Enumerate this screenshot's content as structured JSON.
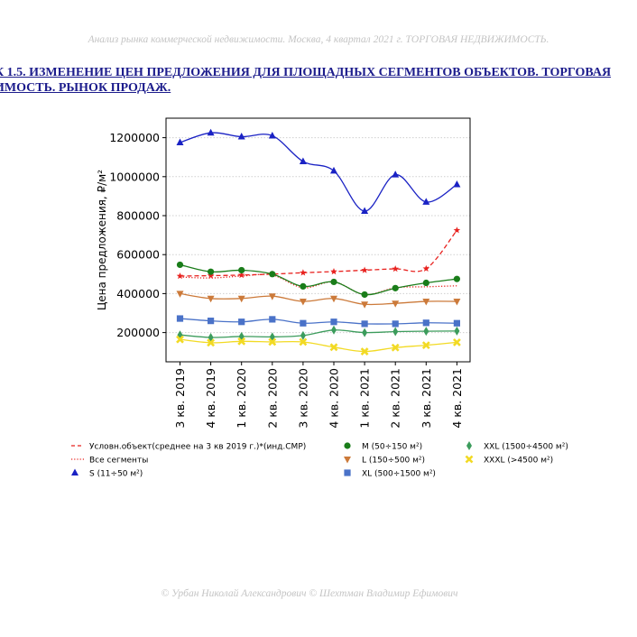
{
  "header": {
    "text": "Анализ рынка коммерческой недвижимости.   Москва,  4 квартал 2021 г.   ТОРГОВАЯ НЕДВИЖИМОСТЬ."
  },
  "title": {
    "line1": "К 1.5. ИЗМЕНЕНИЕ ЦЕН ПРЕДЛОЖЕНИЯ ДЛЯ ПЛОЩАДНЫХ СЕГМЕНТОВ ОБЪЕКТОВ. ТОРГОВАЯ",
    "line2": "ИМОСТЬ. РЫНОК ПРОДАЖ."
  },
  "footer": {
    "text": "© Урбан Николай Александрович   © Шехтман Владимир Ефимович"
  },
  "chart_data": {
    "type": "line",
    "title": "",
    "xlabel": "",
    "ylabel": "Цена предложения, ₽/м²",
    "categories": [
      "3 кв. 2019",
      "4 кв. 2019",
      "1 кв. 2020",
      "2 кв. 2020",
      "3 кв. 2020",
      "4 кв. 2020",
      "1 кв. 2021",
      "2 кв. 2021",
      "3 кв. 2021",
      "4 кв. 2021"
    ],
    "ylim": [
      50000,
      1300000
    ],
    "yticks": [
      200000,
      400000,
      600000,
      800000,
      1000000,
      1200000
    ],
    "ytick_labels": [
      "200000",
      "400000",
      "600000",
      "800000",
      "1000000",
      "1200000"
    ],
    "grid": "horizontal dotted",
    "legend_position": "bottom",
    "series": [
      {
        "name": "Условн.объект(среднее на 3 кв 2019 г.)*(инд.СМР)",
        "color": "#e8221f",
        "marker": "star",
        "line": "dashed",
        "values": [
          490000,
          492000,
          495000,
          500000,
          507000,
          513000,
          520000,
          527000,
          528000,
          725000
        ]
      },
      {
        "name": "Все сегменты",
        "color": "#e8221f",
        "marker": "none",
        "line": "dotted",
        "values": [
          485000,
          480000,
          490000,
          495000,
          430000,
          460000,
          395000,
          430000,
          435000,
          440000
        ]
      },
      {
        "name": "S (11÷50 м²)",
        "color": "#1a22c4",
        "marker": "triangle-up",
        "line": "solid",
        "values": [
          1175000,
          1225000,
          1205000,
          1210000,
          1078000,
          1030000,
          823000,
          1010000,
          870000,
          960000
        ]
      },
      {
        "name": "M (50÷150 м²)",
        "color": "#1a7d1a",
        "marker": "circle",
        "line": "solid",
        "values": [
          548000,
          512000,
          520000,
          500000,
          437000,
          460000,
          395000,
          428000,
          455000,
          475000
        ]
      },
      {
        "name": "L (150÷500 м²)",
        "color": "#cc7a3a",
        "marker": "triangle-down",
        "line": "solid",
        "values": [
          400000,
          375000,
          375000,
          387000,
          360000,
          375000,
          345000,
          350000,
          360000,
          360000
        ]
      },
      {
        "name": "XL (500÷1500 м²)",
        "color": "#4a72c8",
        "marker": "square",
        "line": "solid",
        "values": [
          272000,
          260000,
          255000,
          268000,
          248000,
          255000,
          245000,
          245000,
          250000,
          248000
        ]
      },
      {
        "name": "XXL (1500÷4500 м²)",
        "color": "#3c9c5c",
        "marker": "diamond",
        "line": "solid",
        "values": [
          188000,
          175000,
          180000,
          178000,
          185000,
          213000,
          200000,
          205000,
          207000,
          208000
        ]
      },
      {
        "name": "XXXL (>4500 м²)",
        "color": "#f2da24",
        "marker": "x",
        "line": "solid",
        "values": [
          165000,
          148000,
          155000,
          152000,
          152000,
          125000,
          103000,
          123000,
          135000,
          150000
        ]
      }
    ]
  }
}
